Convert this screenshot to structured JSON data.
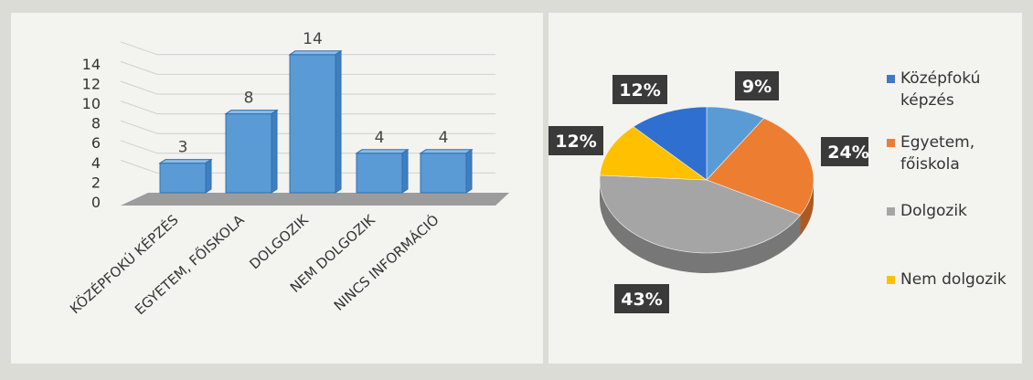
{
  "chart_data": [
    {
      "type": "bar",
      "categories": [
        "KÖZÉPFOKÚ KÉPZÉS",
        "EGYETEM, FŐISKOLA",
        "DOLGOZIK",
        "NEM DOLGOZIK",
        "NINCS INFORMÁCIÓ"
      ],
      "values": [
        3,
        8,
        14,
        4,
        4
      ],
      "data_labels": [
        "3",
        "8",
        "14",
        "4",
        "4"
      ],
      "title": "",
      "xlabel": "",
      "ylabel": "",
      "ylim": [
        0,
        14
      ],
      "yticks": [
        "0",
        "2",
        "4",
        "6",
        "8",
        "10",
        "12",
        "14"
      ],
      "grid": true,
      "bar_color": "#5b9bd5"
    },
    {
      "type": "pie",
      "labels": [
        "Középfokú képzés",
        "Egyetem, főiskola",
        "Dolgozik",
        "Nem dolgozik",
        ""
      ],
      "values": [
        9,
        24,
        43,
        12,
        12
      ],
      "data_labels": [
        "9%",
        "24%",
        "43%",
        "12%",
        "12%"
      ],
      "colors": [
        "#5b9bd5",
        "#ed7d31",
        "#a5a5a5",
        "#ffc000",
        "#2e6fd0"
      ],
      "legend_position": "right",
      "legend": [
        {
          "text": "Középfokú képzés",
          "line1": "Középfokú",
          "line2": "képzés",
          "color": "#3f78c8"
        },
        {
          "text": "Egyetem, főiskola",
          "line1": "Egyetem,",
          "line2": "főiskola",
          "color": "#ed7d31"
        },
        {
          "text": "Dolgozik",
          "line1": "Dolgozik",
          "line2": "",
          "color": "#a5a5a5"
        },
        {
          "text": "Nem dolgozik",
          "line1": "Nem dolgozik",
          "line2": "",
          "color": "#ffc000"
        }
      ]
    }
  ]
}
